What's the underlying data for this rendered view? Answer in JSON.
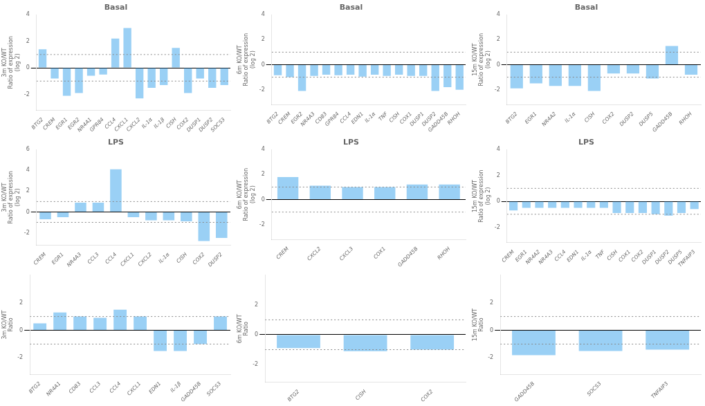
{
  "chart_data": [
    {
      "type": "bar",
      "title": "Basal",
      "ylabel": "3m KO/WT\nRatio of expression\n(log 2)",
      "categories": [
        "BTG2",
        "CREM",
        "EGR1",
        "EGR2",
        "NR4A1",
        "GPR84",
        "CCL4",
        "CXCL1",
        "CXCL2",
        "IL-1α",
        "IL-1β",
        "CISH",
        "COX2",
        "DUSP1",
        "DUSP2",
        "SOCS3"
      ],
      "values": [
        1.4,
        -0.8,
        -2.1,
        -1.9,
        -0.6,
        -0.5,
        2.2,
        3.0,
        -2.3,
        -1.5,
        -1.3,
        1.5,
        -1.9,
        -0.8,
        -1.5,
        -1.3
      ],
      "ylim": [
        -3.2,
        4.0
      ],
      "yticks": [
        -2,
        0,
        2,
        4
      ],
      "reference_lines": [
        1,
        -1
      ],
      "grid": false
    },
    {
      "type": "bar",
      "title": "Basal",
      "ylabel": "6m KO/WT\nRatio of expression\n(log 2)",
      "categories": [
        "BTG2",
        "CREM",
        "EGR2",
        "NR4A3",
        "CD83",
        "GPR84",
        "CCL4",
        "EDN1",
        "IL-1α",
        "TNF",
        "CISH",
        "COX1",
        "DUSP1",
        "DUSP2",
        "GADD45B",
        "RHOH"
      ],
      "values": [
        -0.85,
        -1.0,
        -2.1,
        -0.9,
        -0.8,
        -0.85,
        -0.8,
        -0.95,
        -0.8,
        -0.9,
        -0.8,
        -0.9,
        -0.9,
        -2.1,
        -1.8,
        -2.0
      ],
      "ylim": [
        -3.2,
        4.0
      ],
      "yticks": [
        -2,
        0,
        2,
        4
      ],
      "reference_lines": [
        1,
        -1
      ],
      "grid": false
    },
    {
      "type": "bar",
      "title": "Basal",
      "ylabel": "15m KO/WT\nRatio of expression\n(log 2)",
      "categories": [
        "BTG2",
        "EGR1",
        "NR4A2",
        "IL-1α",
        "CISH",
        "COX2",
        "DUSP2",
        "DUSP5",
        "GADD45B",
        "RHOH"
      ],
      "values": [
        -1.9,
        -1.5,
        -1.7,
        -1.7,
        -2.1,
        -0.7,
        -0.7,
        -1.1,
        1.5,
        -0.8
      ],
      "ylim": [
        -3.2,
        4.0
      ],
      "yticks": [
        -2,
        0,
        2,
        4
      ],
      "reference_lines": [
        1,
        -1
      ],
      "grid": false
    },
    {
      "type": "bar",
      "title": "LPS",
      "ylabel": "3m KO/WT\nRatio of expression\n(log 2)",
      "categories": [
        "CREM",
        "EGR1",
        "NR4A3",
        "CCL3",
        "CCL4",
        "CXCL1",
        "CXCL2",
        "IL-1α",
        "CISH",
        "COX2",
        "DUSP2"
      ],
      "values": [
        -0.7,
        -0.5,
        0.9,
        0.9,
        4.1,
        -0.5,
        -0.8,
        -0.8,
        -0.9,
        -2.8,
        -2.5
      ],
      "ylim": [
        -3.2,
        6.0
      ],
      "yticks": [
        -2,
        0,
        2,
        4,
        6
      ],
      "reference_lines": [
        1,
        -1
      ],
      "grid": false
    },
    {
      "type": "bar",
      "title": "LPS",
      "ylabel": "6m KO/WT\nRatio of expression\n(log 2)",
      "categories": [
        "CREM",
        "CXCL2",
        "CXCL3",
        "COX1",
        "GADD45B",
        "RHOH"
      ],
      "values": [
        1.8,
        1.1,
        1.0,
        1.0,
        1.2,
        1.2
      ],
      "ylim": [
        -3.2,
        4.0
      ],
      "yticks": [
        -2,
        0,
        2,
        4
      ],
      "reference_lines": [
        1,
        -1
      ],
      "grid": false
    },
    {
      "type": "bar",
      "title": "LPS",
      "ylabel": "15m KO/WT\nRatio of expression\n(log 2)",
      "categories": [
        "CREM",
        "EGR1",
        "NR4A2",
        "NR4A3",
        "CCL4",
        "EDN1",
        "IL-1α",
        "TNF",
        "CISH",
        "COX1",
        "COX2",
        "DUSP1",
        "DUSP2",
        "DUSP5",
        "TNFAIP3"
      ],
      "values": [
        -0.7,
        -0.5,
        -0.5,
        -0.5,
        -0.5,
        -0.5,
        -0.5,
        -0.5,
        -0.9,
        -0.9,
        -0.9,
        -1.0,
        -1.1,
        -0.9,
        -0.6
      ],
      "ylim": [
        -3.2,
        4.0
      ],
      "yticks": [
        -2,
        0,
        2,
        4
      ],
      "reference_lines": [
        1,
        -1
      ],
      "grid": false
    },
    {
      "type": "bar",
      "ylabel": "3m KO/WT\nRatio",
      "categories": [
        "BTG2",
        "NR4A1",
        "CD83",
        "CCL3",
        "CCL4",
        "CXCL1",
        "EDN1",
        "IL-1β",
        "GADD45B",
        "SOCS3"
      ],
      "values": [
        0.5,
        1.3,
        1.0,
        0.9,
        1.5,
        1.0,
        -1.5,
        -1.5,
        -1.0,
        1.0
      ],
      "ylim": [
        -3.2,
        4.0
      ],
      "yticks": [
        -2,
        0,
        2
      ],
      "reference_lines": [
        1,
        -1
      ],
      "grid": false
    },
    {
      "type": "bar",
      "ylabel": "6m KO/WT\nRatio",
      "categories": [
        "BTG2",
        "CISH",
        "COX2"
      ],
      "values": [
        -0.9,
        -1.1,
        -1.0
      ],
      "ylim": [
        -3.2,
        4.0
      ],
      "yticks": [
        -2,
        0,
        2
      ],
      "reference_lines": [
        1,
        -1
      ],
      "grid": false
    },
    {
      "type": "bar",
      "ylabel": "15m KO/WT\nRatio",
      "categories": [
        "GADD45B",
        "SOCS3",
        "TNFAIP3"
      ],
      "values": [
        -1.8,
        -1.5,
        -1.4
      ],
      "ylim": [
        -3.2,
        4.0
      ],
      "yticks": [
        -2,
        0,
        2
      ],
      "reference_lines": [
        1,
        -1
      ],
      "grid": false
    }
  ]
}
